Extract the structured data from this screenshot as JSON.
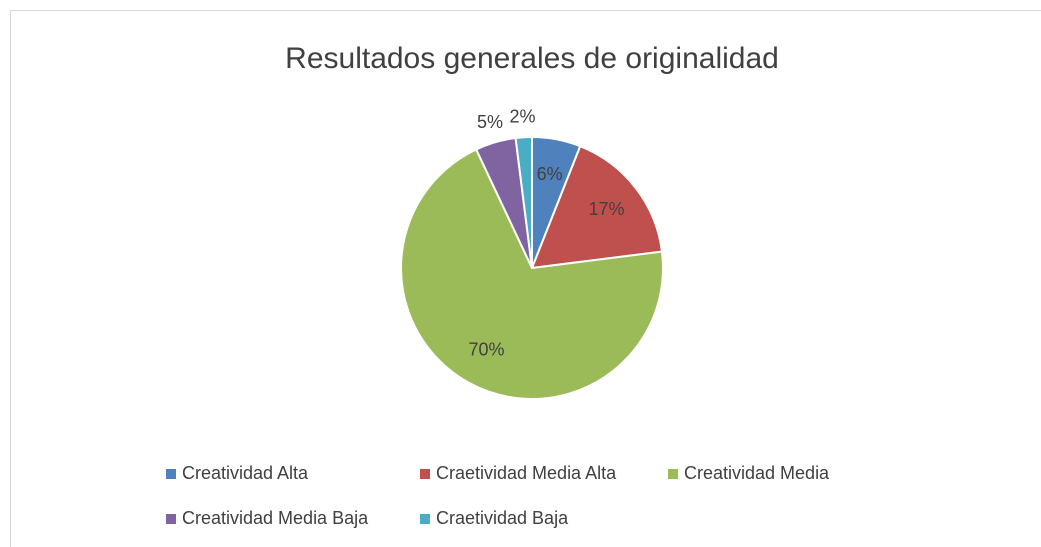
{
  "chart_data": {
    "type": "pie",
    "title": "Resultados generales de originalidad",
    "categories": [
      "Creatividad Alta",
      "Craetividad Media Alta",
      "Creatividad Media",
      "Creatividad Media Baja",
      "Craetividad Baja"
    ],
    "values": [
      6,
      17,
      70,
      5,
      2
    ],
    "value_labels": [
      "6%",
      "17%",
      "70%",
      "5%",
      "2%"
    ],
    "colors": [
      "#4f81bd",
      "#c0504d",
      "#9bbb59",
      "#8064a2",
      "#4bacc6"
    ],
    "legend": "bottom"
  }
}
